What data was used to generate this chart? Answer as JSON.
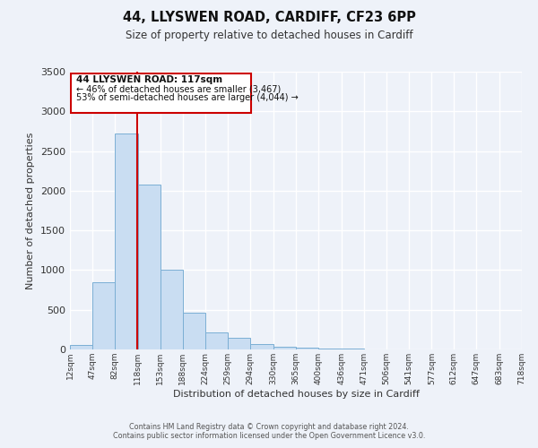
{
  "title": "44, LLYSWEN ROAD, CARDIFF, CF23 6PP",
  "subtitle": "Size of property relative to detached houses in Cardiff",
  "xlabel": "Distribution of detached houses by size in Cardiff",
  "ylabel": "Number of detached properties",
  "bar_color": "#c9ddf2",
  "bar_edge_color": "#7bafd4",
  "bg_color": "#eef2f9",
  "grid_color": "#ffffff",
  "annotation_box_color": "#cc0000",
  "vline_color": "#cc0000",
  "vline_position": 117,
  "annotation_title": "44 LLYSWEN ROAD: 117sqm",
  "annotation_line1": "← 46% of detached houses are smaller (3,467)",
  "annotation_line2": "53% of semi-detached houses are larger (4,044) →",
  "footer1": "Contains HM Land Registry data © Crown copyright and database right 2024.",
  "footer2": "Contains public sector information licensed under the Open Government Licence v3.0.",
  "bin_edges": [
    12,
    47,
    82,
    118,
    153,
    188,
    224,
    259,
    294,
    330,
    365,
    400,
    436,
    471,
    506,
    541,
    577,
    612,
    647,
    683,
    718
  ],
  "bin_labels": [
    "12sqm",
    "47sqm",
    "82sqm",
    "118sqm",
    "153sqm",
    "188sqm",
    "224sqm",
    "259sqm",
    "294sqm",
    "330sqm",
    "365sqm",
    "400sqm",
    "436sqm",
    "471sqm",
    "506sqm",
    "541sqm",
    "577sqm",
    "612sqm",
    "647sqm",
    "683sqm",
    "718sqm"
  ],
  "bar_heights": [
    55,
    850,
    2720,
    2075,
    1005,
    460,
    210,
    145,
    65,
    38,
    20,
    15,
    8,
    0,
    0,
    0,
    0,
    0,
    0,
    0
  ],
  "ylim": [
    0,
    3500
  ],
  "yticks": [
    0,
    500,
    1000,
    1500,
    2000,
    2500,
    3000,
    3500
  ]
}
